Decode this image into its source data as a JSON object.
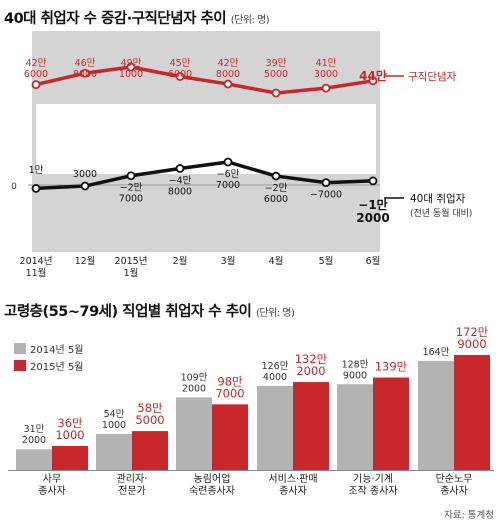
{
  "chart_data": [
    {
      "type": "line",
      "title": "40대 취업자 수 증감·구직단념자 추이",
      "unit": "(단위: 명)",
      "x": [
        [
          "2014년",
          "11월"
        ],
        [
          "12월"
        ],
        [
          "2015년",
          "1월"
        ],
        [
          "2월"
        ],
        [
          "3월"
        ],
        [
          "4월"
        ],
        [
          "5월"
        ],
        [
          "6월"
        ]
      ],
      "series": [
        {
          "name": "구직단념자",
          "color": "#c8272b",
          "values": [
            426000,
            468000,
            491000,
            456000,
            428000,
            395000,
            413000,
            440000
          ],
          "labels": [
            [
              "42만",
              "6000"
            ],
            [
              "46만",
              "8000"
            ],
            [
              "49만",
              "1000"
            ],
            [
              "45만",
              "6000"
            ],
            [
              "42만",
              "8000"
            ],
            [
              "39만",
              "5000"
            ],
            [
              "41만",
              "3000"
            ],
            [
              "44만"
            ]
          ]
        },
        {
          "name": "40대 취업자",
          "sub": "(전년 동월 대비)",
          "color": "#111111",
          "values": [
            10000,
            3000,
            -27000,
            -48000,
            -67000,
            -26000,
            -7000,
            -12000
          ],
          "labels": [
            [
              "1만"
            ],
            [
              "3000"
            ],
            [
              "−2만",
              "7000"
            ],
            [
              "−4만",
              "8000"
            ],
            [
              "−6만",
              "7000"
            ],
            [
              "−2만",
              "6000"
            ],
            [
              "−7000"
            ],
            [
              "−1만",
              "2000"
            ]
          ]
        }
      ],
      "zero_label": "0"
    },
    {
      "type": "bar",
      "title": "고령층(55~79세) 직업별 취업자 수 추이",
      "unit": "(단위: 명)",
      "categories": [
        [
          "사무",
          "종사자"
        ],
        [
          "관리자·",
          "전문가"
        ],
        [
          "농림어업",
          "숙련종사자"
        ],
        [
          "서비스·판매",
          "종사자"
        ],
        [
          "기능·기계",
          "조작 종사자"
        ],
        [
          "단순노무",
          "종사자"
        ]
      ],
      "series": [
        {
          "name": "2014년 5월",
          "color": "#b3b3b3",
          "values": [
            312000,
            541000,
            1092000,
            1264000,
            1289000,
            1640000
          ],
          "labels": [
            [
              "31만",
              "2000"
            ],
            [
              "54만",
              "1000"
            ],
            [
              "109만",
              "2000"
            ],
            [
              "126만",
              "4000"
            ],
            [
              "128만",
              "9000"
            ],
            [
              "164만"
            ]
          ]
        },
        {
          "name": "2015년 5월",
          "color": "#c8272b",
          "values": [
            361000,
            585000,
            987000,
            1322000,
            1390000,
            1729000
          ],
          "labels": [
            [
              "36만",
              "1000"
            ],
            [
              "58만",
              "5000"
            ],
            [
              "98만",
              "7000"
            ],
            [
              "132만",
              "2000"
            ],
            [
              "139만"
            ],
            [
              "172만",
              "9000"
            ]
          ]
        }
      ]
    }
  ],
  "source": "자료: 통계청"
}
